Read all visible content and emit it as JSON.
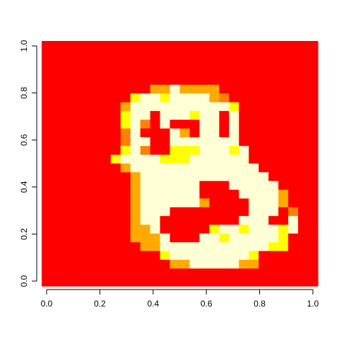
{
  "chart_data": {
    "type": "heatmap",
    "title": "",
    "xlabel": "",
    "ylabel": "",
    "xlim": [
      0,
      1
    ],
    "ylim": [
      0,
      1
    ],
    "x_ticks": [
      "0.0",
      "0.2",
      "0.4",
      "0.6",
      "0.8",
      "1.0"
    ],
    "y_ticks": [
      "0.0",
      "0.2",
      "0.4",
      "0.6",
      "0.8",
      "1.0"
    ],
    "grid": false,
    "legend": "none",
    "colormap": "heat.colors",
    "palette": [
      "#FF0000",
      "#FF8000",
      "#FFAA00",
      "#FFFF00",
      "#FFFFD5"
    ],
    "n_cols": 28,
    "n_rows": 28,
    "rows_top_to_bottom": [
      "0000000000000000000000000000",
      "0000000000000000000000000000",
      "0000000000000000000000000000",
      "0000000000000000000000000000",
      "0000000000000000000000000000",
      "0000000000022422220000000000",
      "0000000003443444421000000000",
      "0000000024444444444300000000",
      "0000000034404443440400000000",
      "0000000034104000440400000000",
      "0000000014000420440400000000",
      "0000000014400444444400000000",
      "0000000034100333444340000000",
      "0000000344443334444440000000",
      "0000000024444444444444000000",
      "0000000002444444444444400000",
      "0000000002444444000444440000",
      "0000000002444444000044442000",
      "0000000002444444200004442000",
      "0000000002444000000004440100",
      "0000000002440000000044400400",
      "0000000002240000034434443400",
      "0000000002224000443444443000",
      "0000000000224444444444433000",
      "0000000000003444444443000000",
      "0000000000000224444422000000",
      "0000000000000000000000000000",
      "0000000000000000000000000000"
    ]
  }
}
